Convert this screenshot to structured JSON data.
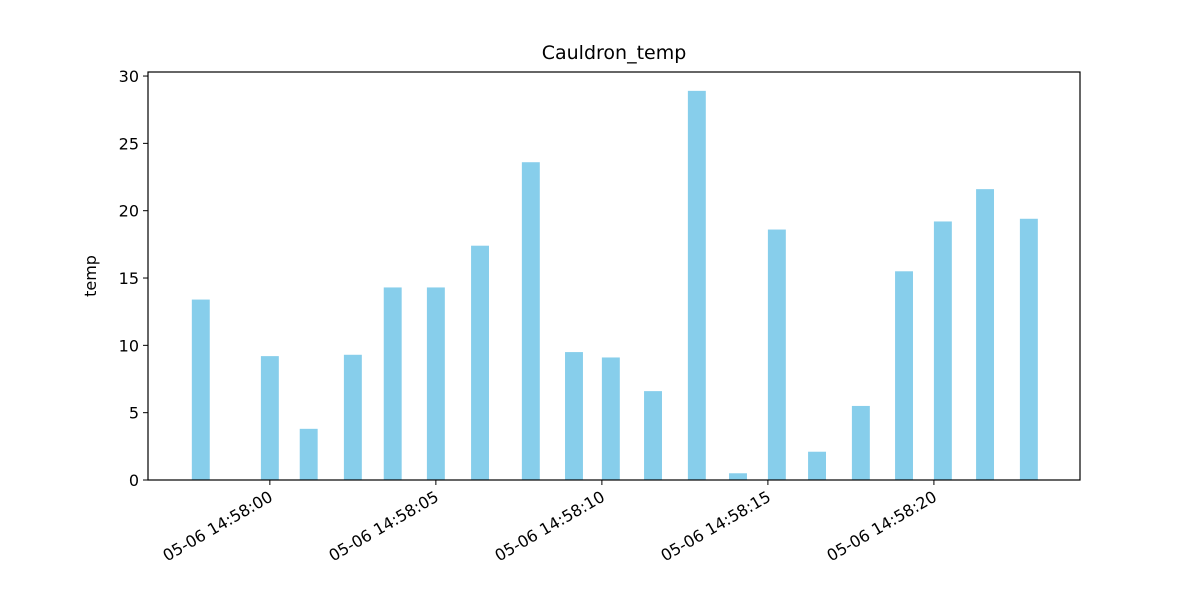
{
  "chart_data": {
    "type": "bar",
    "title": "Cauldron_temp",
    "ylabel": "temp",
    "color": "#87ceeb",
    "x": [
      "05-06 14:57:57.92",
      "05-06 14:58:00.00",
      "05-06 14:58:01.17",
      "05-06 14:58:02.50",
      "05-06 14:58:03.70",
      "05-06 14:58:05.00",
      "05-06 14:58:06.33",
      "05-06 14:58:07.86",
      "05-06 14:58:09.16",
      "05-06 14:58:10.27",
      "05-06 14:58:11.54",
      "05-06 14:58:12.86",
      "05-06 14:58:14.10",
      "05-06 14:58:15.27",
      "05-06 14:58:16.48",
      "05-06 14:58:17.80",
      "05-06 14:58:19.10",
      "05-06 14:58:20.27",
      "05-06 14:58:21.54",
      "05-06 14:58:22.86"
    ],
    "values": [
      13.4,
      9.2,
      3.8,
      9.3,
      14.3,
      14.3,
      17.4,
      23.6,
      9.5,
      9.1,
      6.6,
      28.9,
      0.5,
      18.6,
      2.1,
      5.5,
      15.5,
      19.2,
      21.6,
      19.4
    ],
    "xlim": [
      "05-06 14:57:56.33",
      "05-06 14:58:24.40"
    ],
    "xticks": [
      "05-06 14:58:00",
      "05-06 14:58:05",
      "05-06 14:58:10",
      "05-06 14:58:15",
      "05-06 14:58:20"
    ],
    "ylim": [
      0,
      30.3
    ],
    "yticks": [
      0,
      5,
      10,
      15,
      20,
      25,
      30
    ]
  }
}
